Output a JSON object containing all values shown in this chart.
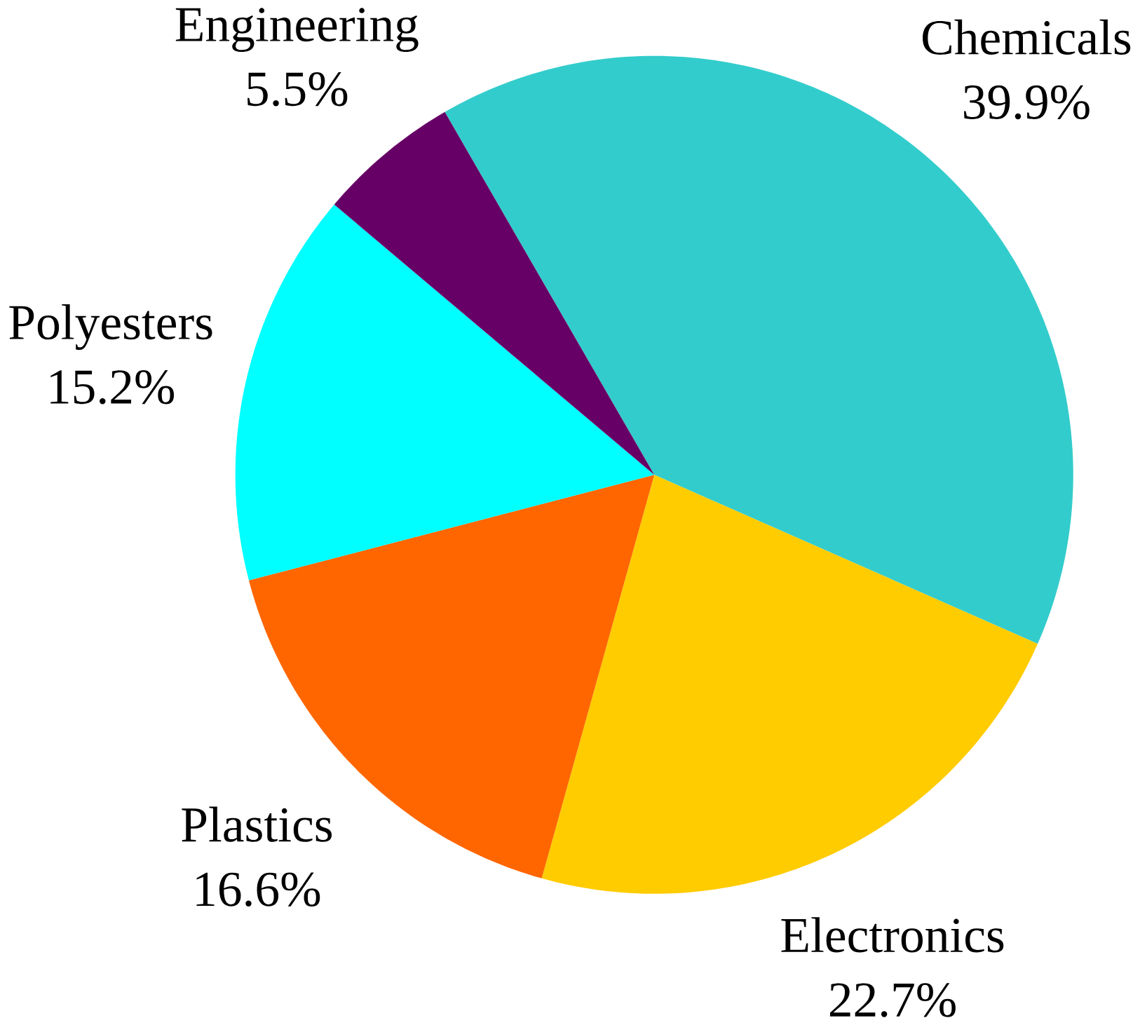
{
  "chart_data": {
    "type": "pie",
    "categories": [
      "Chemicals",
      "Electronics",
      "Plastics",
      "Polyesters",
      "Engineering"
    ],
    "values": [
      39.9,
      22.7,
      16.6,
      15.2,
      5.5
    ],
    "colors": [
      "#33cccc",
      "#ffcc00",
      "#ff6600",
      "#00ffff",
      "#660066"
    ],
    "value_labels": [
      "39.9%",
      "22.7%",
      "16.6%",
      "15.2%",
      "5.5%"
    ]
  }
}
